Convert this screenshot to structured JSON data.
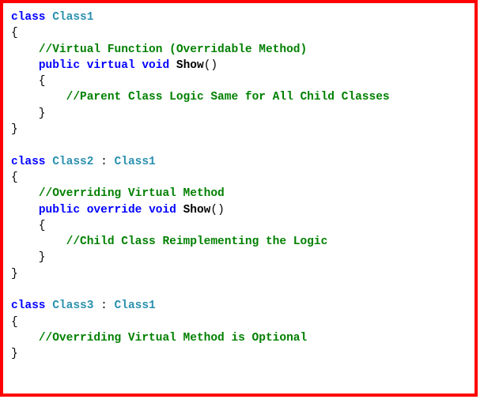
{
  "colors": {
    "keyword": "#0000ff",
    "type": "#2b91af",
    "method": "#000000",
    "comment": "#008000",
    "punctuation": "#000000",
    "border": "#ff0000",
    "background": "#ffffff"
  },
  "font": {
    "family": "Consolas, Courier New, monospace",
    "size": 14.5,
    "weight_code": "bold"
  },
  "lines": [
    [
      {
        "t": "kw",
        "s": "class"
      },
      {
        "t": "pn",
        "s": " "
      },
      {
        "t": "ty",
        "s": "Class1"
      }
    ],
    [
      {
        "t": "pn",
        "s": "{"
      }
    ],
    [
      {
        "t": "pn",
        "s": "    "
      },
      {
        "t": "cm",
        "s": "//Virtual Function (Overridable Method)"
      }
    ],
    [
      {
        "t": "pn",
        "s": "    "
      },
      {
        "t": "kw",
        "s": "public"
      },
      {
        "t": "pn",
        "s": " "
      },
      {
        "t": "kw",
        "s": "virtual"
      },
      {
        "t": "pn",
        "s": " "
      },
      {
        "t": "kw",
        "s": "void"
      },
      {
        "t": "pn",
        "s": " "
      },
      {
        "t": "mn",
        "s": "Show"
      },
      {
        "t": "pn",
        "s": "()"
      }
    ],
    [
      {
        "t": "pn",
        "s": "    {"
      }
    ],
    [
      {
        "t": "pn",
        "s": "        "
      },
      {
        "t": "cm",
        "s": "//Parent Class Logic Same for All Child Classes"
      }
    ],
    [
      {
        "t": "pn",
        "s": "    }"
      }
    ],
    [
      {
        "t": "pn",
        "s": "}"
      }
    ],
    [],
    [
      {
        "t": "kw",
        "s": "class"
      },
      {
        "t": "pn",
        "s": " "
      },
      {
        "t": "ty",
        "s": "Class2"
      },
      {
        "t": "pn",
        "s": " : "
      },
      {
        "t": "ty",
        "s": "Class1"
      }
    ],
    [
      {
        "t": "pn",
        "s": "{"
      }
    ],
    [
      {
        "t": "pn",
        "s": "    "
      },
      {
        "t": "cm",
        "s": "//Overriding Virtual Method"
      }
    ],
    [
      {
        "t": "pn",
        "s": "    "
      },
      {
        "t": "kw",
        "s": "public"
      },
      {
        "t": "pn",
        "s": " "
      },
      {
        "t": "kw",
        "s": "override"
      },
      {
        "t": "pn",
        "s": " "
      },
      {
        "t": "kw",
        "s": "void"
      },
      {
        "t": "pn",
        "s": " "
      },
      {
        "t": "mn",
        "s": "Show"
      },
      {
        "t": "pn",
        "s": "()"
      }
    ],
    [
      {
        "t": "pn",
        "s": "    {"
      }
    ],
    [
      {
        "t": "pn",
        "s": "        "
      },
      {
        "t": "cm",
        "s": "//Child Class Reimplementing the Logic"
      }
    ],
    [
      {
        "t": "pn",
        "s": "    }"
      }
    ],
    [
      {
        "t": "pn",
        "s": "}"
      }
    ],
    [],
    [
      {
        "t": "kw",
        "s": "class"
      },
      {
        "t": "pn",
        "s": " "
      },
      {
        "t": "ty",
        "s": "Class3"
      },
      {
        "t": "pn",
        "s": " : "
      },
      {
        "t": "ty",
        "s": "Class1"
      }
    ],
    [
      {
        "t": "pn",
        "s": "{"
      }
    ],
    [
      {
        "t": "pn",
        "s": "    "
      },
      {
        "t": "cm",
        "s": "//Overriding Virtual Method is Optional"
      }
    ],
    [
      {
        "t": "pn",
        "s": "}"
      }
    ]
  ]
}
